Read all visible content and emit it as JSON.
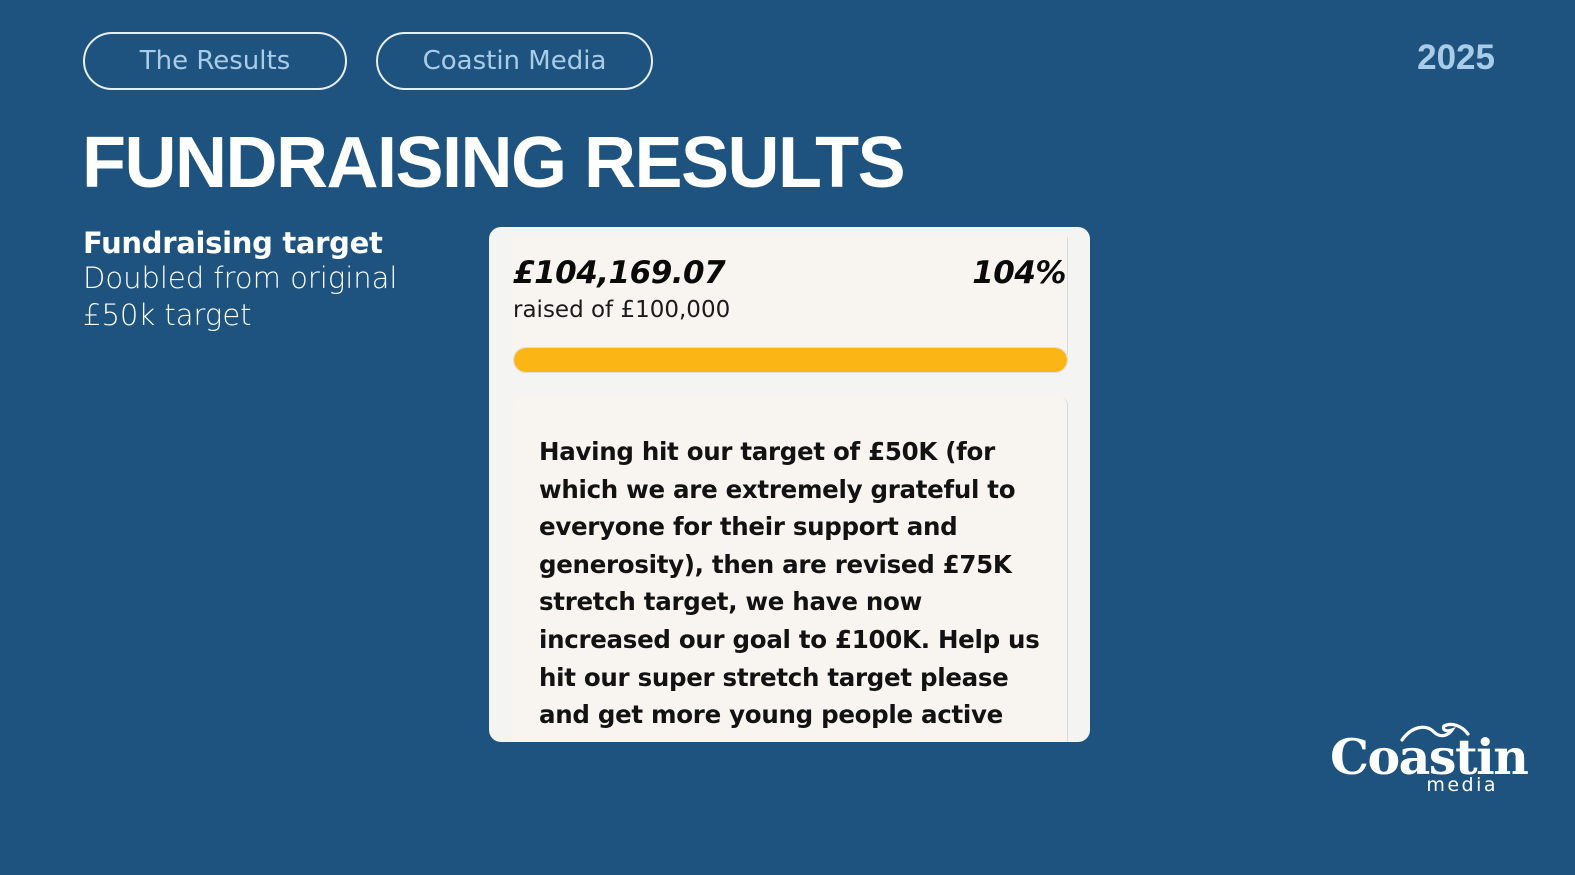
{
  "header": {
    "tab_results": "The Results",
    "tab_company": "Coastin Media",
    "year": "2025"
  },
  "title": "FUNDRAISING RESULTS",
  "subtitle": {
    "heading": "Fundraising target",
    "body": "Doubled from original £50k target"
  },
  "fundraiser": {
    "amount_raised": "£104,169.07",
    "raised_caption": "raised of £100,000",
    "percent_label": "104%",
    "progress_fraction": 1.0,
    "progress_color": "#fbb514",
    "message": "Having hit our target of £50K (for which we are extremely grateful to everyone for their support and generosity), then are revised £75K stretch target, we have now increased our goal to £100K. Help us hit our super stretch target please and get more young people active outdoors!"
  },
  "logo": {
    "word": "Coastin",
    "sub": "media",
    "icon": "wave-icon"
  },
  "colors": {
    "background": "#1e5380",
    "accent_text": "#a9cde8",
    "card": "#f4f4f2"
  }
}
